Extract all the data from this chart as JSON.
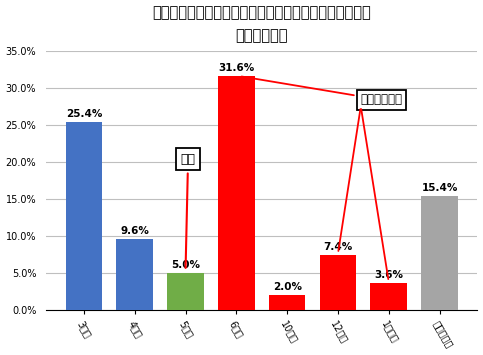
{
  "title": "インフルエンザワクチン接種による効果が有効な期間は\nどれくらいか",
  "categories": [
    "3ヵ月",
    "4ヵ月",
    "5ヵ月",
    "6ヵ月",
    "10ヵ月",
    "12ヵ月",
    "1年以上",
    "わからない"
  ],
  "values": [
    25.4,
    9.6,
    5.0,
    31.6,
    2.0,
    7.4,
    3.6,
    15.4
  ],
  "bar_colors": [
    "#4472c4",
    "#4472c4",
    "#70ad47",
    "#ff0000",
    "#ff0000",
    "#ff0000",
    "#ff0000",
    "#a5a5a5"
  ],
  "ylim": [
    0,
    35
  ],
  "yticks": [
    0,
    5,
    10,
    15,
    20,
    25,
    30,
    35
  ],
  "ytick_labels": [
    "0.0%",
    "5.0%",
    "10.0%",
    "15.0%",
    "20.0%",
    "25.0%",
    "30.0%",
    "35.0%"
  ],
  "annotation_seikai": "正解",
  "annotation_kado": "効果過大評価",
  "background_color": "#ffffff",
  "plot_bg_color": "#ffffff",
  "grid_color": "#bfbfbf",
  "title_fontsize": 10.5,
  "bar_label_fontsize": 7.5,
  "tick_fontsize": 7
}
